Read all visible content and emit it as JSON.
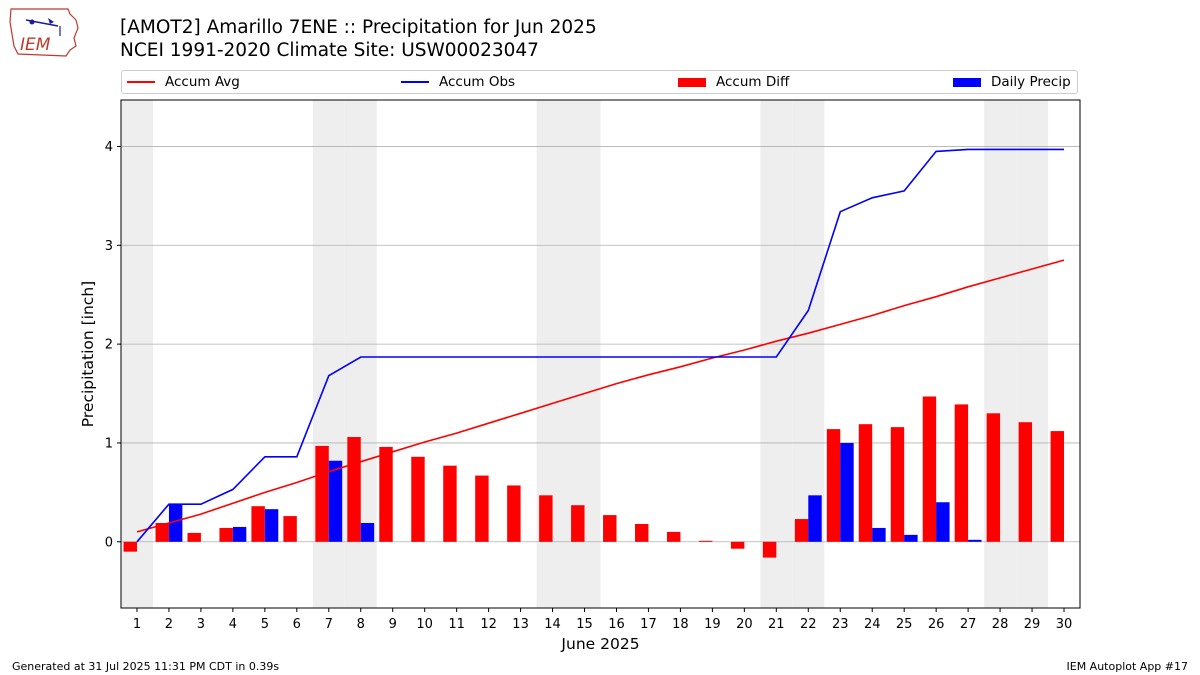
{
  "header": {
    "logo_text": "IEM",
    "title_line1": "[AMOT2] Amarillo 7ENE :: Precipitation for Jun 2025",
    "title_line2": "NCEI 1991-2020 Climate Site: USW00023047"
  },
  "footer": {
    "generated": "Generated at 31 Jul 2025 11:31 PM CDT in 0.39s",
    "app": "IEM Autoplot App #17"
  },
  "colors": {
    "accum_avg": "#ff0000",
    "accum_obs": "#0000ff",
    "accum_diff": "#ff0000",
    "daily_precip": "#0000ff",
    "weekend_shade": "#eeeeee",
    "grid": "#b0b0b0"
  },
  "chart_data": {
    "type": "bar",
    "xlabel": "June 2025",
    "ylabel": "Precipitation [inch]",
    "xlim": [
      1,
      30
    ],
    "ylim": [
      -0.67,
      4.47
    ],
    "yticks": [
      0,
      1,
      2,
      3,
      4
    ],
    "grid": "y-major",
    "legend_placement": "top, above plot",
    "days": [
      1,
      2,
      3,
      4,
      5,
      6,
      7,
      8,
      9,
      10,
      11,
      12,
      13,
      14,
      15,
      16,
      17,
      18,
      19,
      20,
      21,
      22,
      23,
      24,
      25,
      26,
      27,
      28,
      29,
      30
    ],
    "weekend_days": [
      1,
      7,
      8,
      14,
      15,
      21,
      22,
      28,
      29
    ],
    "series": [
      {
        "name": "Accum Avg",
        "type": "line",
        "values": [
          0.1,
          0.19,
          0.28,
          0.39,
          0.5,
          0.6,
          0.71,
          0.81,
          0.91,
          1.01,
          1.1,
          1.2,
          1.3,
          1.4,
          1.5,
          1.6,
          1.69,
          1.77,
          1.86,
          1.94,
          2.03,
          2.11,
          2.2,
          2.29,
          2.39,
          2.48,
          2.58,
          2.67,
          2.76,
          2.85
        ]
      },
      {
        "name": "Accum Obs",
        "type": "line",
        "values": [
          0.0,
          0.38,
          0.38,
          0.53,
          0.86,
          0.86,
          1.68,
          1.87,
          1.87,
          1.87,
          1.87,
          1.87,
          1.87,
          1.87,
          1.87,
          1.87,
          1.87,
          1.87,
          1.87,
          1.87,
          1.87,
          2.34,
          3.34,
          3.48,
          3.55,
          3.95,
          3.97,
          3.97,
          3.97,
          3.97
        ]
      },
      {
        "name": "Accum Diff",
        "type": "bar",
        "values": [
          -0.1,
          0.19,
          0.09,
          0.14,
          0.36,
          0.26,
          0.97,
          1.06,
          0.96,
          0.86,
          0.77,
          0.67,
          0.57,
          0.47,
          0.37,
          0.27,
          0.18,
          0.1,
          0.01,
          -0.07,
          -0.16,
          0.23,
          1.14,
          1.19,
          1.16,
          1.47,
          1.39,
          1.3,
          1.21,
          1.12
        ]
      },
      {
        "name": "Daily Precip",
        "type": "bar",
        "values": [
          0.0,
          0.38,
          0.0,
          0.15,
          0.33,
          0.0,
          0.82,
          0.19,
          0.0,
          0.0,
          0.0,
          0.0,
          0.0,
          0.0,
          0.0,
          0.0,
          0.0,
          0.0,
          0.0,
          0.0,
          0.0,
          0.47,
          1.0,
          0.14,
          0.07,
          0.4,
          0.02,
          0.0,
          0.0,
          0.0
        ]
      }
    ]
  }
}
